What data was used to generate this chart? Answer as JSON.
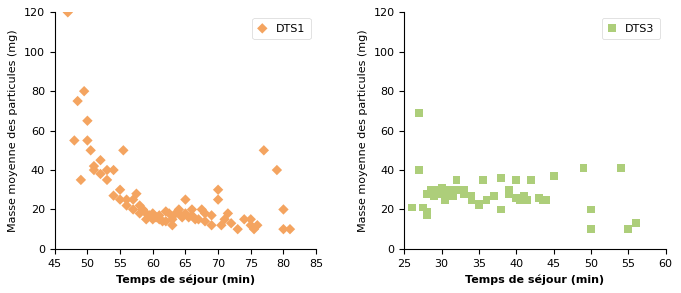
{
  "dts1_x": [
    47,
    48,
    48.5,
    49,
    49.5,
    50,
    50,
    50.5,
    51,
    51,
    52,
    52,
    53,
    53,
    54,
    54,
    55,
    55,
    55.5,
    56,
    56,
    57,
    57,
    57.5,
    58,
    58,
    58.5,
    59,
    59,
    59.5,
    60,
    60,
    60.5,
    61,
    61,
    61.5,
    62,
    62,
    62.5,
    63,
    63,
    63.5,
    64,
    64,
    64.5,
    65,
    65,
    65.5,
    66,
    66,
    66.5,
    67,
    67.5,
    68,
    68,
    69,
    69,
    70,
    70,
    70.5,
    71,
    71.5,
    72,
    73,
    74,
    75,
    75,
    75.5,
    76,
    77,
    79,
    80,
    80,
    81
  ],
  "dts1_y": [
    120,
    55,
    75,
    35,
    80,
    65,
    55,
    50,
    42,
    40,
    45,
    38,
    40,
    35,
    27,
    40,
    25,
    30,
    50,
    25,
    22,
    20,
    25,
    28,
    18,
    22,
    20,
    15,
    18,
    17,
    15,
    18,
    16,
    15,
    17,
    14,
    14,
    19,
    18,
    15,
    12,
    18,
    20,
    18,
    16,
    25,
    18,
    16,
    20,
    17,
    15,
    15,
    20,
    18,
    14,
    12,
    17,
    30,
    25,
    12,
    15,
    18,
    13,
    10,
    15,
    12,
    15,
    10,
    12,
    50,
    40,
    20,
    10,
    10
  ],
  "dts3_x": [
    26,
    27,
    27,
    27.5,
    28,
    28,
    28,
    28.5,
    29,
    29,
    29.5,
    30,
    30,
    30.5,
    31,
    31,
    31.5,
    32,
    32,
    33,
    33,
    34,
    34,
    35,
    35,
    35.5,
    36,
    37,
    38,
    38,
    39,
    39,
    40,
    40,
    40.5,
    41,
    41.5,
    42,
    43,
    43.5,
    44,
    45,
    49,
    50,
    50,
    54,
    55,
    55,
    56
  ],
  "dts3_y": [
    21,
    69,
    40,
    21,
    17,
    28,
    19,
    30,
    27,
    30,
    28,
    29,
    31,
    25,
    28,
    30,
    27,
    35,
    30,
    30,
    28,
    27,
    25,
    23,
    22,
    35,
    25,
    27,
    36,
    20,
    28,
    30,
    35,
    26,
    25,
    27,
    25,
    35,
    26,
    25,
    25,
    37,
    41,
    10,
    20,
    41,
    10,
    10,
    13
  ],
  "dts1_color": "#F4A460",
  "dts3_color": "#ADCE7A",
  "dts1_label": "DTS1",
  "dts3_label": "DTS3",
  "xlabel": "Temps de séjour (min)",
  "ylabel": "Masse moyenne des particules (mg)",
  "xlim1": [
    45,
    85
  ],
  "xlim2": [
    25,
    60
  ],
  "ylim": [
    0,
    120
  ],
  "yticks": [
    0,
    20,
    40,
    60,
    80,
    100,
    120
  ],
  "xticks1": [
    45,
    50,
    55,
    60,
    65,
    70,
    75,
    80,
    85
  ],
  "xticks2": [
    25,
    30,
    35,
    40,
    45,
    50,
    55,
    60
  ],
  "label_fontsize": 8,
  "tick_fontsize": 8
}
